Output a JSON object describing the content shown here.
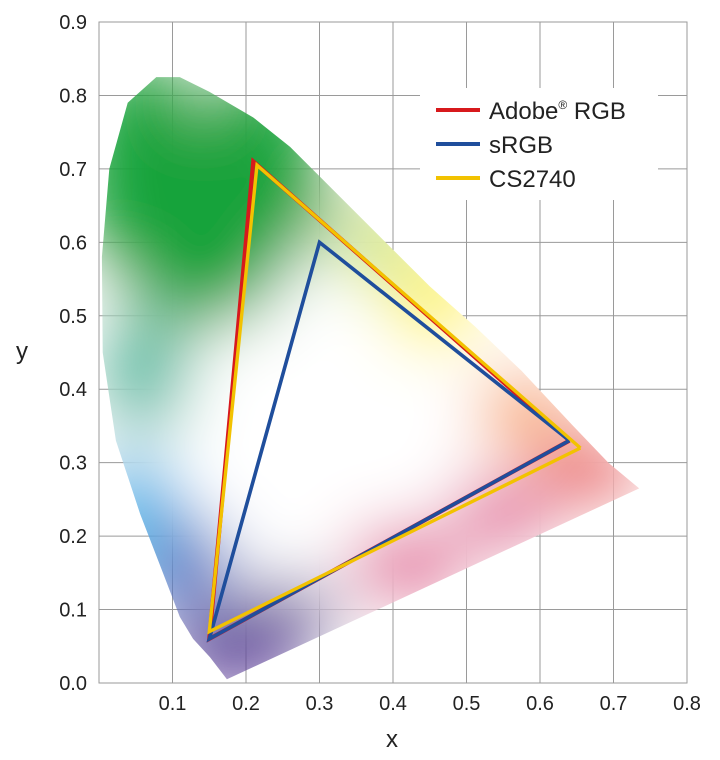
{
  "chart_data": {
    "type": "line",
    "title": "",
    "xlabel": "x",
    "ylabel": "y",
    "xlim": [
      0,
      0.8
    ],
    "ylim": [
      0,
      0.9
    ],
    "x_ticks": [
      "0.1",
      "0.2",
      "0.3",
      "0.4",
      "0.5",
      "0.6",
      "0.7",
      "0.8"
    ],
    "y_ticks": [
      "0.0",
      "0.1",
      "0.2",
      "0.3",
      "0.4",
      "0.5",
      "0.6",
      "0.7",
      "0.8",
      "0.9"
    ],
    "grid": true,
    "legend_position": "top-right",
    "spectral_locus": {
      "x": [
        0.174,
        0.151,
        0.128,
        0.11,
        0.087,
        0.056,
        0.023,
        0.005,
        0.004,
        0.014,
        0.039,
        0.078,
        0.11,
        0.15,
        0.21,
        0.26,
        0.33,
        0.395,
        0.45,
        0.512,
        0.575,
        0.645,
        0.693,
        0.735,
        0.174
      ],
      "y": [
        0.005,
        0.035,
        0.06,
        0.09,
        0.15,
        0.23,
        0.33,
        0.45,
        0.58,
        0.7,
        0.79,
        0.825,
        0.825,
        0.805,
        0.77,
        0.73,
        0.66,
        0.595,
        0.54,
        0.485,
        0.425,
        0.35,
        0.3,
        0.265,
        0.005
      ]
    },
    "series": [
      {
        "name": "Adobe® RGB",
        "color": "#d7191c",
        "x": [
          0.64,
          0.21,
          0.15,
          0.64
        ],
        "y": [
          0.33,
          0.71,
          0.06,
          0.33
        ]
      },
      {
        "name": "sRGB",
        "color": "#1f4e9c",
        "x": [
          0.64,
          0.3,
          0.15,
          0.64
        ],
        "y": [
          0.33,
          0.6,
          0.06,
          0.33
        ]
      },
      {
        "name": "CS2740",
        "color": "#f2c200",
        "x": [
          0.655,
          0.215,
          0.15,
          0.655
        ],
        "y": [
          0.32,
          0.705,
          0.07,
          0.32
        ]
      }
    ],
    "legend": {
      "entries": [
        {
          "label_main": "Adobe",
          "label_sup": "®",
          "label_rest": " RGB",
          "color": "#d7191c"
        },
        {
          "label_main": "sRGB",
          "label_sup": "",
          "label_rest": "",
          "color": "#1f4e9c"
        },
        {
          "label_main": "CS2740",
          "label_sup": "",
          "label_rest": "",
          "color": "#f2c200"
        }
      ]
    },
    "locus_colors": {
      "white_point": "#ffffff",
      "green": "#12a33a",
      "yellow_green": "#c8e03a",
      "yellow": "#fff200",
      "orange": "#f7941d",
      "red": "#e8232a",
      "magenta": "#e0488c",
      "violet": "#5a3a96",
      "blue": "#1f5fbf",
      "cyan": "#1fb0e8",
      "teal": "#26b59a"
    }
  }
}
